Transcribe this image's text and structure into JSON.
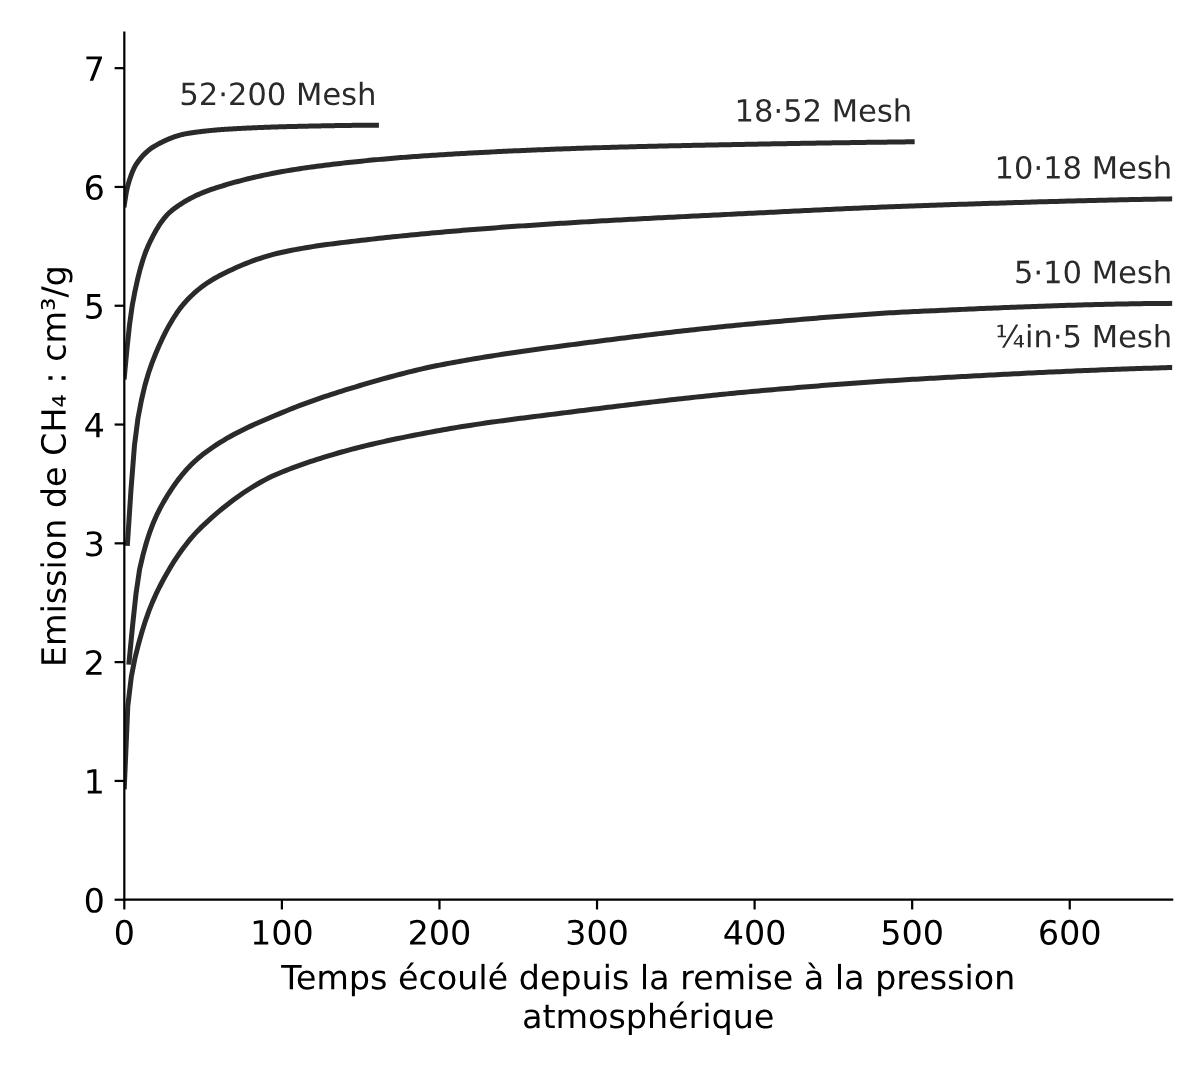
{
  "chart_data": {
    "type": "line",
    "xlabel": "Temps écoulé depuis la remise à la pression\natmosphérique",
    "ylabel": "Emission de CH₄ : cm³/g",
    "xlim": [
      0,
      665
    ],
    "ylim": [
      0,
      7.3
    ],
    "xticks": [
      0,
      100,
      200,
      300,
      400,
      500,
      600
    ],
    "yticks": [
      0,
      1,
      2,
      3,
      4,
      5,
      6,
      7
    ],
    "grid": false,
    "legend": false,
    "marker": "none",
    "line_style": "solid",
    "series": [
      {
        "name": "52·200 Mesh",
        "color": "#2a2a2a",
        "x": [
          0,
          2,
          8,
          20,
          40,
          70,
          110,
          160
        ],
        "values": [
          5.85,
          6.0,
          6.2,
          6.35,
          6.45,
          6.49,
          6.51,
          6.52
        ]
      },
      {
        "name": "18·52 Mesh",
        "color": "#2a2a2a",
        "x": [
          0,
          5,
          15,
          30,
          60,
          120,
          200,
          300,
          400,
          500
        ],
        "values": [
          4.4,
          5.0,
          5.5,
          5.8,
          6.0,
          6.17,
          6.27,
          6.33,
          6.36,
          6.38
        ]
      },
      {
        "name": "10·18 Mesh",
        "color": "#2a2a2a",
        "x": [
          2,
          8,
          20,
          40,
          60,
          100,
          150,
          250,
          400,
          500,
          665
        ],
        "values": [
          3.0,
          4.0,
          4.6,
          5.05,
          5.25,
          5.45,
          5.55,
          5.67,
          5.78,
          5.84,
          5.9
        ]
      },
      {
        "name": "5·10 Mesh",
        "color": "#2a2a2a",
        "x": [
          3,
          10,
          25,
          50,
          100,
          150,
          200,
          300,
          400,
          500,
          665
        ],
        "values": [
          2.0,
          2.8,
          3.35,
          3.75,
          4.1,
          4.33,
          4.5,
          4.7,
          4.85,
          4.95,
          5.02
        ]
      },
      {
        "name": "¼in·5 Mesh",
        "color": "#2a2a2a",
        "x": [
          0,
          2,
          8,
          25,
          50,
          100,
          200,
          280,
          400,
          500,
          665
        ],
        "values": [
          0.95,
          1.6,
          2.1,
          2.7,
          3.15,
          3.6,
          3.95,
          4.1,
          4.28,
          4.38,
          4.48
        ]
      }
    ]
  }
}
